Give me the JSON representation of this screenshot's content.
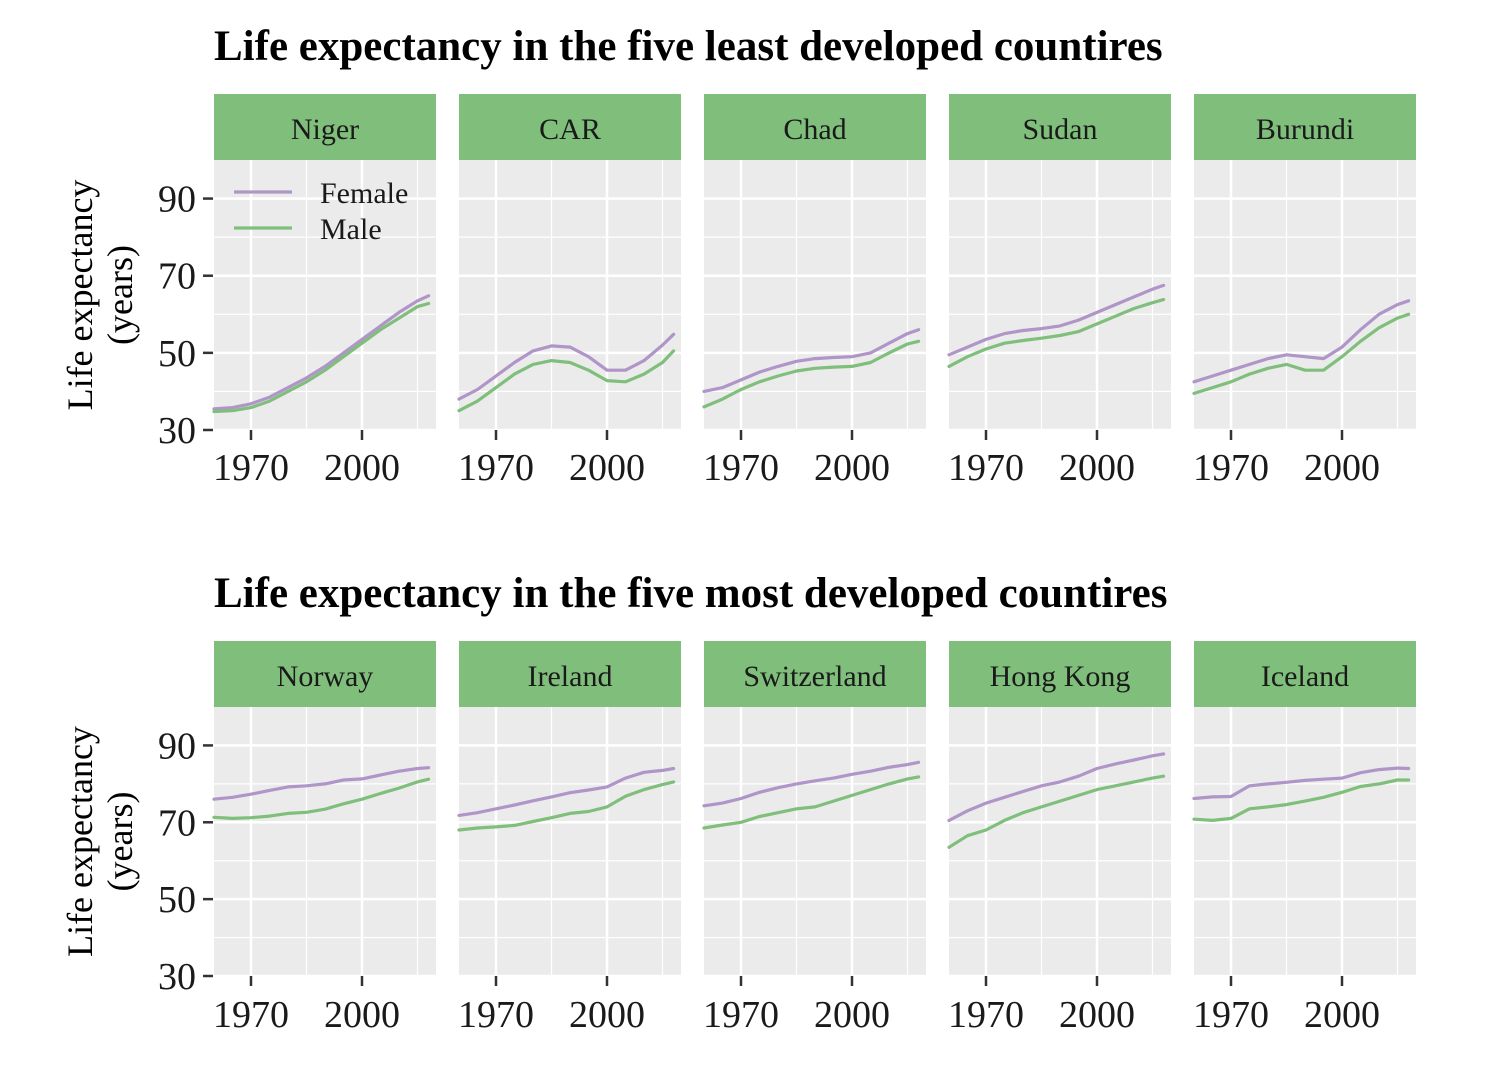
{
  "chart_data": [
    {
      "type": "line",
      "title": "Life expectancy in the five least developed countires",
      "xlabel": "",
      "ylabel": "Life expectancy\n(years)",
      "xlim": [
        1960,
        2020
      ],
      "ylim": [
        30,
        100
      ],
      "x_ticks": [
        1970,
        2000
      ],
      "y_ticks": [
        30,
        50,
        70,
        90
      ],
      "grid": true,
      "legend": {
        "placement": "top-left inside first panel",
        "entries": [
          {
            "name": "Female",
            "color": "#b095c8"
          },
          {
            "name": "Male",
            "color": "#7fbf7b"
          }
        ]
      },
      "panels": [
        {
          "label": "Niger",
          "x": [
            1960,
            1965,
            1970,
            1975,
            1980,
            1985,
            1990,
            1995,
            2000,
            2005,
            2010,
            2015,
            2018
          ],
          "series": [
            {
              "name": "Female",
              "values": [
                35.5,
                35.8,
                36.8,
                38.5,
                41.0,
                43.5,
                46.5,
                50.0,
                53.5,
                57.0,
                60.5,
                63.5,
                64.8
              ]
            },
            {
              "name": "Male",
              "values": [
                34.8,
                35.0,
                35.8,
                37.5,
                40.0,
                42.5,
                45.5,
                49.0,
                52.5,
                56.0,
                59.0,
                62.0,
                62.8
              ]
            }
          ]
        },
        {
          "label": "CAR",
          "x": [
            1960,
            1965,
            1970,
            1975,
            1980,
            1985,
            1990,
            1995,
            2000,
            2005,
            2010,
            2015,
            2018
          ],
          "series": [
            {
              "name": "Female",
              "values": [
                38.0,
                40.5,
                44.0,
                47.5,
                50.5,
                51.8,
                51.5,
                49.0,
                45.5,
                45.5,
                48.0,
                52.0,
                54.8
              ]
            },
            {
              "name": "Male",
              "values": [
                35.0,
                37.5,
                41.0,
                44.5,
                47.0,
                48.0,
                47.5,
                45.5,
                42.8,
                42.5,
                44.5,
                47.5,
                50.5
              ]
            }
          ]
        },
        {
          "label": "Chad",
          "x": [
            1960,
            1965,
            1970,
            1975,
            1980,
            1985,
            1990,
            1995,
            2000,
            2005,
            2010,
            2015,
            2018
          ],
          "series": [
            {
              "name": "Female",
              "values": [
                40.0,
                41.0,
                43.0,
                45.0,
                46.5,
                47.8,
                48.5,
                48.8,
                49.0,
                50.0,
                52.5,
                55.0,
                56.0
              ]
            },
            {
              "name": "Male",
              "values": [
                36.0,
                38.0,
                40.5,
                42.5,
                44.0,
                45.3,
                46.0,
                46.3,
                46.5,
                47.5,
                50.0,
                52.3,
                53.0
              ]
            }
          ]
        },
        {
          "label": "Sudan",
          "x": [
            1960,
            1965,
            1970,
            1975,
            1980,
            1985,
            1990,
            1995,
            2000,
            2005,
            2010,
            2015,
            2018
          ],
          "series": [
            {
              "name": "Female",
              "values": [
                49.5,
                51.5,
                53.5,
                55.0,
                55.8,
                56.3,
                57.0,
                58.5,
                60.5,
                62.5,
                64.5,
                66.5,
                67.5
              ]
            },
            {
              "name": "Male",
              "values": [
                46.5,
                49.0,
                51.0,
                52.5,
                53.2,
                53.8,
                54.5,
                55.5,
                57.5,
                59.5,
                61.5,
                63.0,
                63.8
              ]
            }
          ]
        },
        {
          "label": "Burundi",
          "x": [
            1960,
            1965,
            1970,
            1975,
            1980,
            1985,
            1990,
            1995,
            2000,
            2005,
            2010,
            2015,
            2018
          ],
          "series": [
            {
              "name": "Female",
              "values": [
                42.5,
                44.0,
                45.5,
                47.0,
                48.5,
                49.5,
                49.0,
                48.5,
                51.5,
                56.0,
                60.0,
                62.5,
                63.5
              ]
            },
            {
              "name": "Male",
              "values": [
                39.5,
                41.0,
                42.5,
                44.5,
                46.0,
                47.0,
                45.5,
                45.5,
                49.0,
                53.0,
                56.5,
                59.0,
                60.0
              ]
            }
          ]
        }
      ]
    },
    {
      "type": "line",
      "title": "Life expectancy in the five most developed countires",
      "xlabel": "",
      "ylabel": "Life expectancy\n(years)",
      "xlim": [
        1960,
        2020
      ],
      "ylim": [
        30,
        100
      ],
      "x_ticks": [
        1970,
        2000
      ],
      "y_ticks": [
        30,
        50,
        70,
        90
      ],
      "grid": true,
      "panels": [
        {
          "label": "Norway",
          "x": [
            1960,
            1965,
            1970,
            1975,
            1980,
            1985,
            1990,
            1995,
            2000,
            2005,
            2010,
            2015,
            2018
          ],
          "series": [
            {
              "name": "Female",
              "values": [
                76.0,
                76.5,
                77.3,
                78.3,
                79.2,
                79.5,
                80.0,
                81.0,
                81.3,
                82.3,
                83.3,
                84.0,
                84.2
              ]
            },
            {
              "name": "Male",
              "values": [
                71.3,
                71.0,
                71.2,
                71.6,
                72.3,
                72.6,
                73.4,
                74.8,
                76.0,
                77.5,
                78.9,
                80.5,
                81.2
              ]
            }
          ]
        },
        {
          "label": "Ireland",
          "x": [
            1960,
            1965,
            1970,
            1975,
            1980,
            1985,
            1990,
            1995,
            2000,
            2005,
            2010,
            2015,
            2018
          ],
          "series": [
            {
              "name": "Female",
              "values": [
                71.8,
                72.5,
                73.5,
                74.5,
                75.6,
                76.6,
                77.7,
                78.4,
                79.2,
                81.5,
                83.0,
                83.5,
                84.0
              ]
            },
            {
              "name": "Male",
              "values": [
                68.0,
                68.5,
                68.8,
                69.2,
                70.2,
                71.2,
                72.3,
                72.8,
                74.0,
                76.8,
                78.5,
                79.8,
                80.5
              ]
            }
          ]
        },
        {
          "label": "Switzerland",
          "x": [
            1960,
            1965,
            1970,
            1975,
            1980,
            1985,
            1990,
            1995,
            2000,
            2005,
            2010,
            2015,
            2018
          ],
          "series": [
            {
              "name": "Female",
              "values": [
                74.3,
                75.0,
                76.2,
                77.8,
                79.0,
                80.0,
                80.8,
                81.5,
                82.5,
                83.3,
                84.3,
                85.0,
                85.6
              ]
            },
            {
              "name": "Male",
              "values": [
                68.5,
                69.3,
                70.0,
                71.5,
                72.5,
                73.5,
                74.0,
                75.5,
                77.0,
                78.5,
                80.0,
                81.3,
                81.8
              ]
            }
          ]
        },
        {
          "label": "Hong Kong",
          "x": [
            1960,
            1965,
            1970,
            1975,
            1980,
            1985,
            1990,
            1995,
            2000,
            2005,
            2010,
            2015,
            2018
          ],
          "series": [
            {
              "name": "Female",
              "values": [
                70.5,
                73.0,
                75.0,
                76.5,
                78.0,
                79.5,
                80.5,
                82.0,
                84.0,
                85.2,
                86.2,
                87.3,
                87.8
              ]
            },
            {
              "name": "Male",
              "values": [
                63.5,
                66.5,
                68.0,
                70.5,
                72.5,
                74.0,
                75.5,
                77.0,
                78.5,
                79.5,
                80.5,
                81.5,
                82.0
              ]
            }
          ]
        },
        {
          "label": "Iceland",
          "x": [
            1960,
            1965,
            1970,
            1975,
            1980,
            1985,
            1990,
            1995,
            2000,
            2005,
            2010,
            2015,
            2018
          ],
          "series": [
            {
              "name": "Female",
              "values": [
                76.2,
                76.6,
                76.7,
                79.5,
                80.0,
                80.4,
                80.9,
                81.2,
                81.5,
                82.9,
                83.7,
                84.1,
                84.0
              ]
            },
            {
              "name": "Male",
              "values": [
                70.8,
                70.5,
                71.0,
                73.5,
                74.0,
                74.6,
                75.5,
                76.5,
                77.8,
                79.3,
                80.0,
                81.0,
                81.0
              ]
            }
          ]
        }
      ]
    }
  ],
  "colors": {
    "female": "#b095c8",
    "male": "#7fbf7b",
    "strip": "#7fbf7b",
    "panel_bg": "#ebebeb",
    "grid": "#ffffff"
  }
}
